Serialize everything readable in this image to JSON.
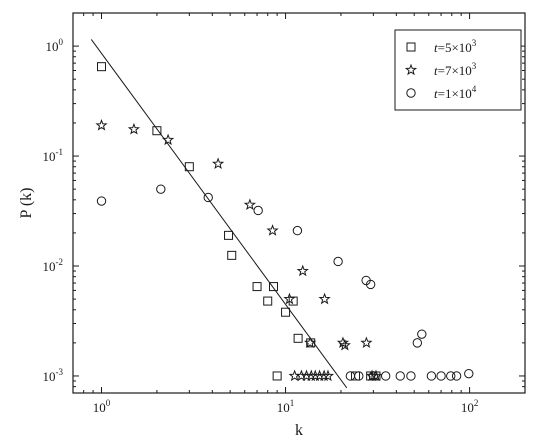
{
  "chart_data": {
    "type": "scatter",
    "xlabel": "k",
    "ylabel": "P (k)",
    "xscale": "log",
    "yscale": "log",
    "xlim": [
      0.7,
      200
    ],
    "ylim": [
      0.0007,
      2
    ],
    "xticks": [
      {
        "value": 1,
        "mant": "10",
        "exp": "0"
      },
      {
        "value": 10,
        "mant": "10",
        "exp": "1"
      },
      {
        "value": 100,
        "mant": "10",
        "exp": "2"
      }
    ],
    "yticks": [
      {
        "value": 1,
        "mant": "10",
        "exp": "0"
      },
      {
        "value": 0.1,
        "mant": "10",
        "exp": "-1"
      },
      {
        "value": 0.01,
        "mant": "10",
        "exp": "-2"
      },
      {
        "value": 0.001,
        "mant": "10",
        "exp": "-3"
      }
    ],
    "grid": false,
    "legend_position": "top-right",
    "series": [
      {
        "legend_var": "t",
        "legend_eq": "=5×10",
        "legend_exp": "3",
        "marker": "square",
        "points": [
          [
            1,
            0.65
          ],
          [
            2,
            0.17
          ],
          [
            3,
            0.08
          ],
          [
            4.9,
            0.019
          ],
          [
            5.1,
            0.0125
          ],
          [
            7,
            0.0065
          ],
          [
            8,
            0.0048
          ],
          [
            8.6,
            0.0065
          ],
          [
            10,
            0.0038
          ],
          [
            11,
            0.0048
          ],
          [
            11.7,
            0.0022
          ],
          [
            13.7,
            0.002
          ],
          [
            9,
            0.001
          ],
          [
            24,
            0.001
          ],
          [
            29,
            0.001
          ],
          [
            31,
            0.001
          ]
        ]
      },
      {
        "legend_var": "t",
        "legend_eq": "=7×10",
        "legend_exp": "3",
        "marker": "star",
        "points": [
          [
            1,
            0.19
          ],
          [
            1.5,
            0.175
          ],
          [
            2.3,
            0.14
          ],
          [
            4.3,
            0.085
          ],
          [
            6.4,
            0.036
          ],
          [
            8.5,
            0.021
          ],
          [
            10.5,
            0.005
          ],
          [
            12.4,
            0.009
          ],
          [
            13.6,
            0.002
          ],
          [
            16.3,
            0.005
          ],
          [
            20.5,
            0.002
          ],
          [
            27.5,
            0.002
          ],
          [
            21,
            0.0019
          ],
          [
            11.2,
            0.001
          ],
          [
            12.2,
            0.001
          ],
          [
            13,
            0.001
          ],
          [
            13.8,
            0.001
          ],
          [
            14.5,
            0.001
          ],
          [
            15.3,
            0.001
          ],
          [
            16.2,
            0.001
          ],
          [
            17,
            0.001
          ],
          [
            29.5,
            0.001
          ],
          [
            31,
            0.001
          ]
        ]
      },
      {
        "legend_var": "t",
        "legend_eq": "=1×10",
        "legend_exp": "4",
        "marker": "circle",
        "points": [
          [
            1,
            0.039
          ],
          [
            2.1,
            0.05
          ],
          [
            3.8,
            0.042
          ],
          [
            7.1,
            0.032
          ],
          [
            11.6,
            0.021
          ],
          [
            19.3,
            0.011
          ],
          [
            27.4,
            0.0074
          ],
          [
            29,
            0.0068
          ],
          [
            52,
            0.002
          ],
          [
            55,
            0.0024
          ],
          [
            22.5,
            0.001
          ],
          [
            25,
            0.001
          ],
          [
            30,
            0.001
          ],
          [
            35,
            0.001
          ],
          [
            42,
            0.001
          ],
          [
            48,
            0.001
          ],
          [
            62,
            0.001
          ],
          [
            70,
            0.001
          ],
          [
            79,
            0.001
          ],
          [
            85,
            0.001
          ],
          [
            99,
            0.00105
          ]
        ]
      }
    ],
    "fit_line": {
      "x": [
        0.88,
        21.5
      ],
      "y": [
        1.15,
        0.00078
      ]
    }
  }
}
